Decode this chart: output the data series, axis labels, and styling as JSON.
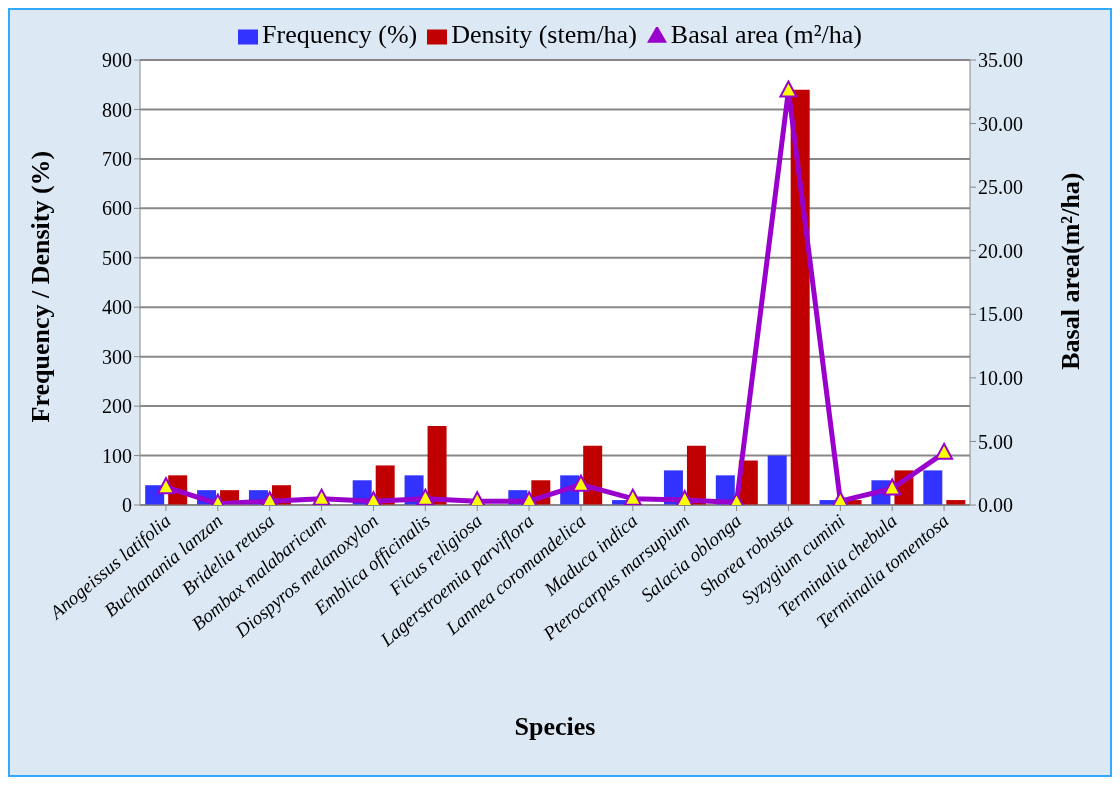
{
  "chart_data": {
    "type": "bar",
    "xlabel": "Species",
    "ylabel": "Frequency / Density (%)",
    "y2label": "Basal area(m²/ha)",
    "categories": [
      "Anogeissus latifolia",
      "Buchanania lanzan",
      "Bridelia retusa",
      "Bombax malabaricum",
      "Diospyros melanoxylon",
      "Emblica officinalis",
      "Ficus religiosa",
      "Lagerstroemia parviflora",
      "Lannea coromandelica",
      "Maduca indica",
      "Pterocarpus marsupium",
      "Salacia oblonga",
      "Shorea robusta",
      "Syzygium cumini",
      "Terminalia chebula",
      "Terminalia tomentosa"
    ],
    "series": [
      {
        "name": "Frequency (%)",
        "color": "#3333ff",
        "values": [
          40,
          30,
          30,
          null,
          50,
          60,
          null,
          30,
          60,
          10,
          70,
          60,
          100,
          10,
          50,
          70
        ]
      },
      {
        "name": "Density (stem/ha)",
        "color": "#c00000",
        "values": [
          60,
          30,
          40,
          null,
          80,
          160,
          null,
          50,
          120,
          null,
          120,
          90,
          840,
          10,
          70,
          10
        ]
      },
      {
        "name": "Basal area (m²/ha)",
        "type": "line",
        "axis": "y2",
        "color": "#9900cc",
        "marker": "triangle",
        "values": [
          1.4,
          0.1,
          0.3,
          0.5,
          0.3,
          0.5,
          0.3,
          0.3,
          1.6,
          0.5,
          0.4,
          0.2,
          32.6,
          0.3,
          1.3,
          4.1
        ]
      }
    ],
    "ylim": [
      0,
      900
    ],
    "yticks": [
      0,
      100,
      200,
      300,
      400,
      500,
      600,
      700,
      800,
      900
    ],
    "y2lim": [
      0,
      35
    ],
    "y2ticks": [
      {
        "value": 0,
        "label": "0.00"
      },
      {
        "value": 5,
        "label": "5.00"
      },
      {
        "value": 10,
        "label": "10.00"
      },
      {
        "value": 15,
        "label": "15.00"
      },
      {
        "value": 20,
        "label": "20.00"
      },
      {
        "value": 25,
        "label": "25.00"
      },
      {
        "value": 30,
        "label": "30.00"
      },
      {
        "value": 35,
        "label": "35.00"
      }
    ],
    "grid": "y",
    "legend": "top"
  }
}
